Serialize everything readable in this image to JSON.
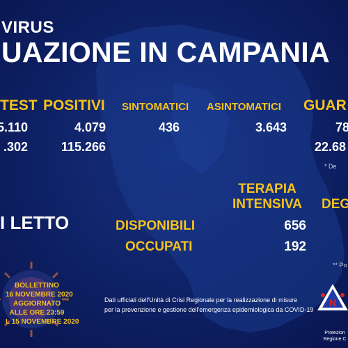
{
  "header": {
    "line1": "VIRUS",
    "line2": "UAZIONE IN CAMPANIA"
  },
  "columns": {
    "test": {
      "label": "TEST",
      "today": "5.110",
      "total": ".302"
    },
    "positivi": {
      "label": "POSITIVI",
      "today": "4.079",
      "total": "115.266"
    },
    "sintomatici": {
      "label": "SINTOMATICI",
      "today": "436"
    },
    "asintomatici": {
      "label": "ASINTOMATICI",
      "today": "3.643"
    },
    "guariti": {
      "label": "GUAR",
      "today": "78",
      "total": "22.68",
      "note": "* De"
    }
  },
  "beds": {
    "label": "I LETTO",
    "terapia_intensiva": "TERAPIA INTENSIVA",
    "degenza": "DEG",
    "rows": [
      {
        "label": "DISPONIBILI",
        "value": "656"
      },
      {
        "label": "OCCUPATI",
        "value": "192"
      }
    ],
    "note": "** Po"
  },
  "bulletin": {
    "line1": "BOLLETTINO",
    "line2": "16 NOVEMBRE 2020",
    "line3": "AGGIORNATO",
    "line4": "ALLE ORE 23:59",
    "line5": "L 15 NOVEMBRE 2020"
  },
  "footer": {
    "line1": "Dati ufficiali dell'Unità di Crisi Regionale per la realizzazione di misure",
    "line2": "per la prevenzione e gestione dell'emergenza epidemiologica da COVID-19"
  },
  "logo": {
    "line1": "Protezion",
    "line2": "Regione C"
  },
  "colors": {
    "background": "#0b1d63",
    "accent": "#f6c21c",
    "map": "#1a3a8c"
  },
  "icons": [
    "virus-icon",
    "italy-map",
    "civil-protection-logo"
  ]
}
